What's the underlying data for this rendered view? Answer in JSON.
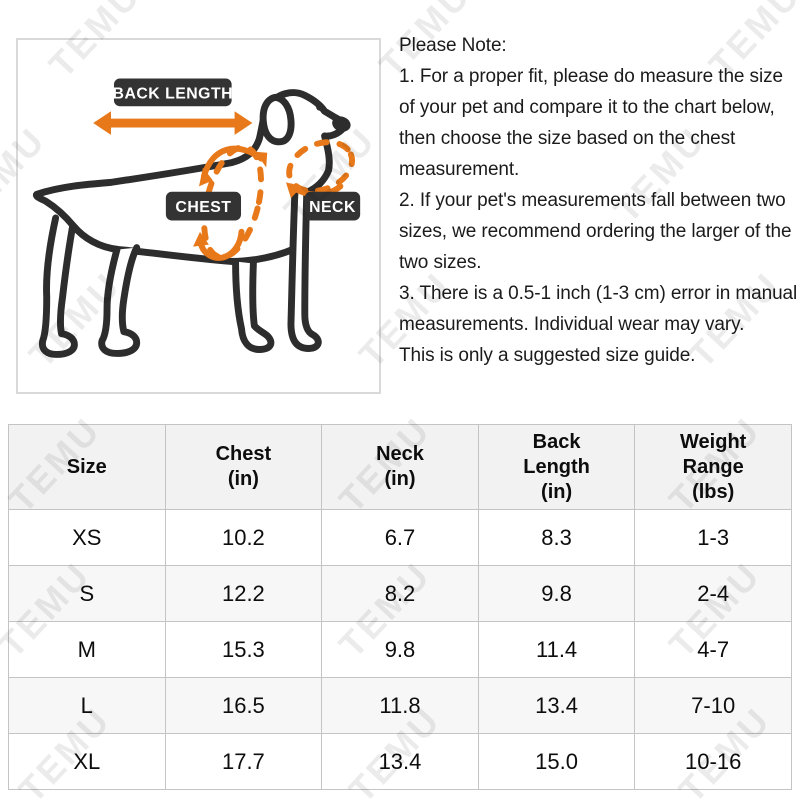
{
  "watermark": {
    "text": "TEMU"
  },
  "diagram": {
    "back_length_label": "BACK LENGTH",
    "chest_label": "CHEST",
    "neck_label": "NECK"
  },
  "notes": {
    "title": "Please Note:",
    "items": [
      "1. For a proper fit, please do measure the size of your pet and compare it to the chart below, then choose the size based on the chest measurement.",
      "2. If your pet's measurements fall between two sizes, we recommend ordering the larger of the two sizes.",
      "3. There is a 0.5-1 inch (1-3 cm) error in manual measurements. Individual wear may vary.",
      "This is only a suggested size guide."
    ]
  },
  "size_table": {
    "headers": [
      "Size",
      "Chest\n(in)",
      "Neck\n(in)",
      "Back\nLength\n(in)",
      "Weight\nRange\n(lbs)"
    ],
    "rows": [
      [
        "XS",
        "10.2",
        "6.7",
        "8.3",
        "1-3"
      ],
      [
        "S",
        "12.2",
        "8.2",
        "9.8",
        "2-4"
      ],
      [
        "M",
        "15.3",
        "9.8",
        "11.4",
        "4-7"
      ],
      [
        "L",
        "16.5",
        "11.8",
        "13.4",
        "7-10"
      ],
      [
        "XL",
        "17.7",
        "13.4",
        "15.0",
        "10-16"
      ]
    ]
  },
  "colors": {
    "accent_orange": "#e8791b",
    "label_background": "#333333",
    "dog_outline": "#2d2d2d",
    "table_border": "#c4c4c4",
    "header_background": "#f2f2f2",
    "alt_row_background": "#f7f7f7"
  }
}
